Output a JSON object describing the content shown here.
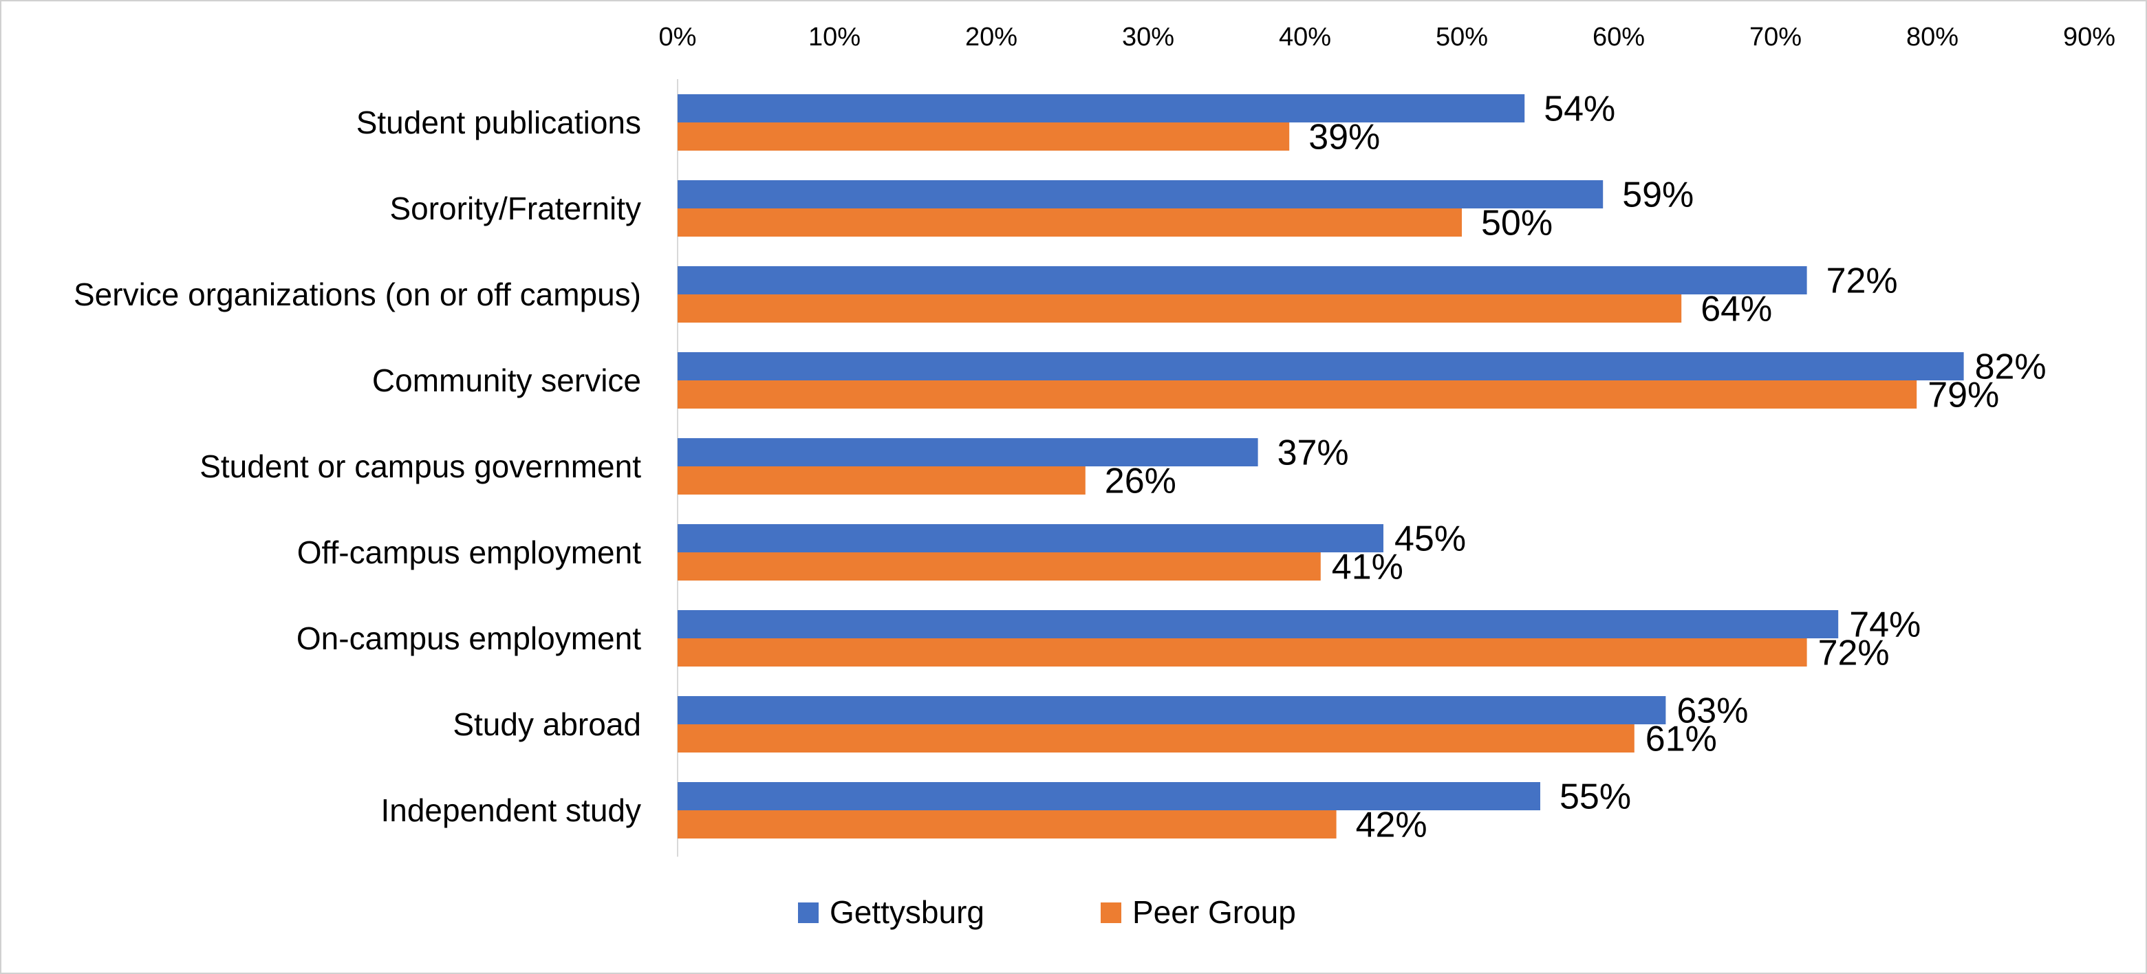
{
  "chart_data": {
    "type": "bar",
    "orientation": "horizontal",
    "categories": [
      "Student publications",
      "Sorority/Fraternity",
      "Service organizations (on or off campus)",
      "Community service",
      "Student or campus government",
      "Off-campus employment",
      "On-campus employment",
      "Study abroad",
      "Independent study"
    ],
    "series": [
      {
        "name": "Gettysburg",
        "color": "#4472C4",
        "values": [
          54,
          59,
          72,
          82,
          37,
          45,
          74,
          63,
          55
        ],
        "labels": [
          "54%",
          "59%",
          "72%",
          "82%",
          "37%",
          "45%",
          "74%",
          "63%",
          "55%"
        ]
      },
      {
        "name": "Peer Group",
        "color": "#ED7D31",
        "values": [
          39,
          50,
          64,
          79,
          26,
          41,
          72,
          61,
          42
        ],
        "labels": [
          "39%",
          "50%",
          "64%",
          "79%",
          "26%",
          "41%",
          "72%",
          "61%",
          "42%"
        ]
      }
    ],
    "xlim": [
      0,
      90
    ],
    "xticks": [
      "0%",
      "10%",
      "20%",
      "30%",
      "40%",
      "50%",
      "60%",
      "70%",
      "80%",
      "90%"
    ],
    "x_axis_position": "top",
    "grid": false,
    "legend_position": "bottom",
    "title": "",
    "xlabel": "",
    "ylabel": ""
  }
}
